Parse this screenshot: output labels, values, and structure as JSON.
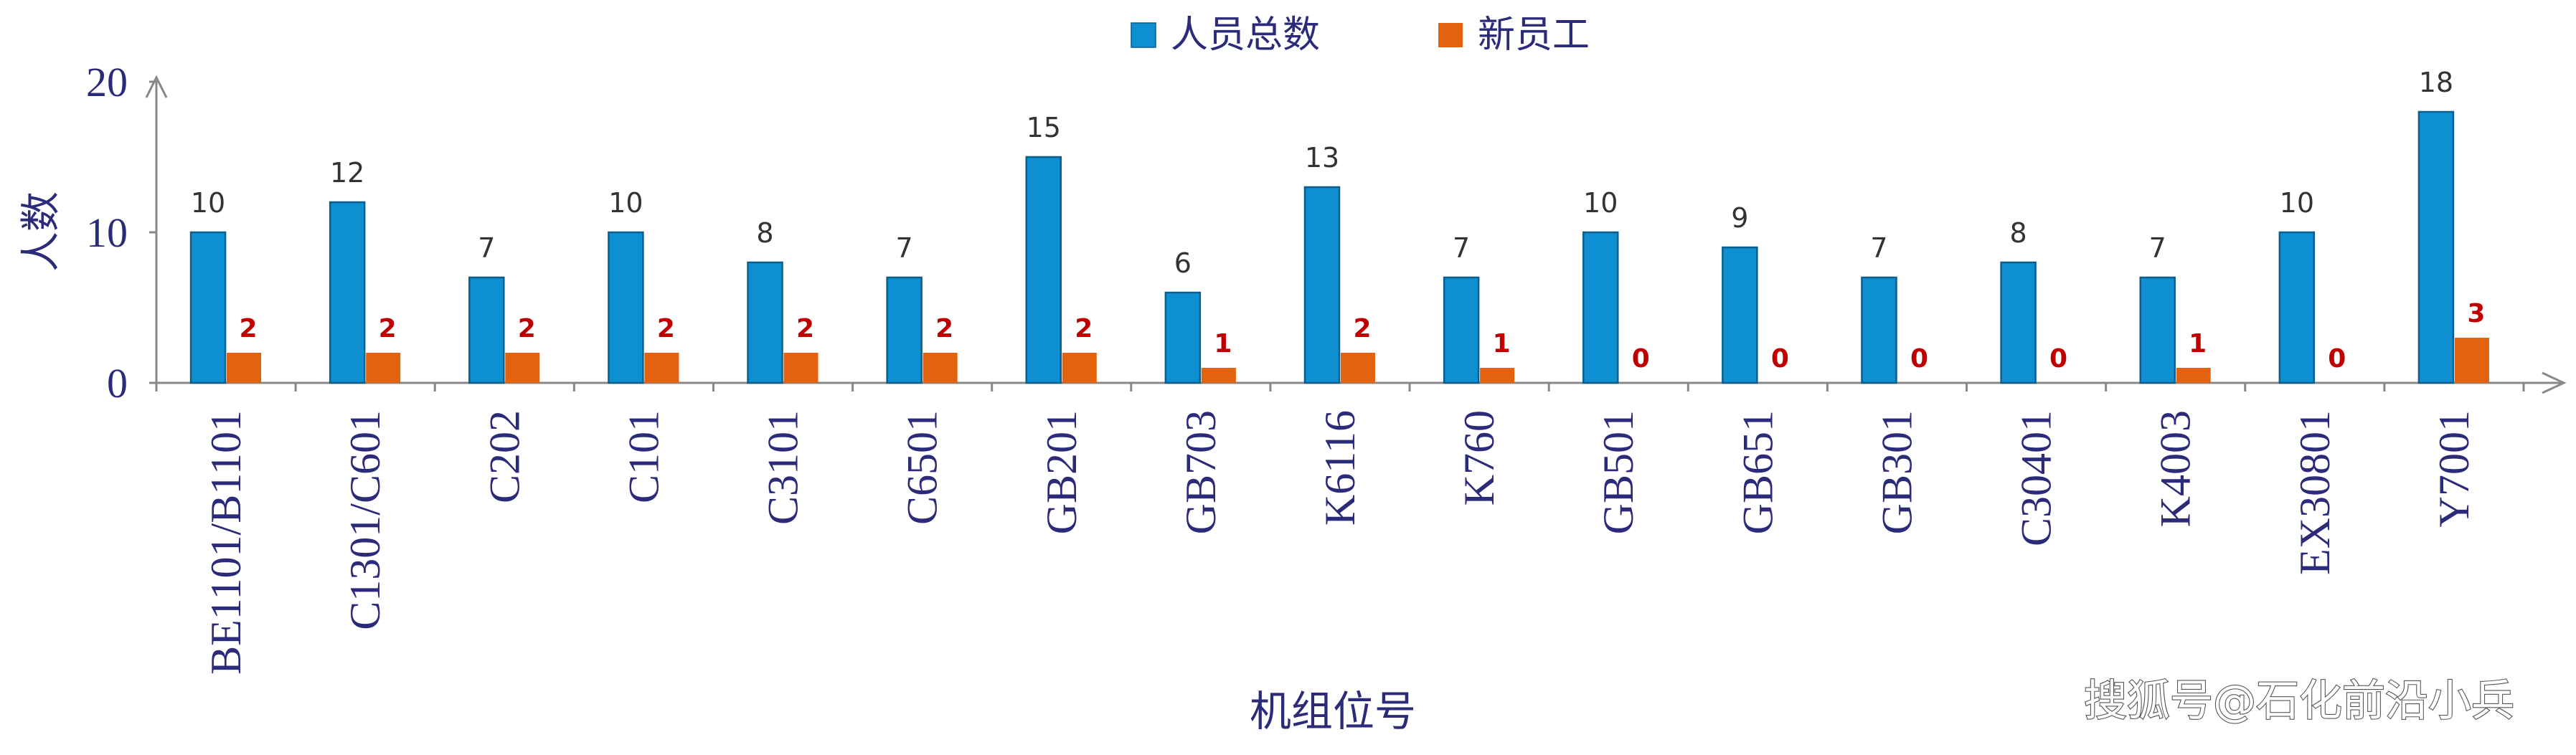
{
  "chart_data": {
    "type": "bar",
    "categories": [
      "BE1101/B1101",
      "C1301/C601",
      "C202",
      "C101",
      "C3101",
      "C6501",
      "GB201",
      "GB703",
      "K6116",
      "K760",
      "GB501",
      "GB651",
      "GB301",
      "C30401",
      "K4003",
      "EX30801",
      "Y7001"
    ],
    "series": [
      {
        "name": "人员总数",
        "color": "#0e8fd1",
        "values": [
          10,
          12,
          7,
          10,
          8,
          7,
          15,
          6,
          13,
          7,
          10,
          9,
          7,
          8,
          7,
          10,
          18
        ]
      },
      {
        "name": "新员工",
        "color": "#e2620e",
        "values": [
          2,
          2,
          2,
          2,
          2,
          2,
          2,
          1,
          2,
          1,
          0,
          0,
          0,
          0,
          1,
          0,
          3
        ]
      }
    ],
    "xlabel": "机组位号",
    "ylabel": "人数",
    "ylim": [
      0,
      20
    ],
    "yticks": [
      "0",
      "10",
      "20"
    ],
    "legend_position": "top-center",
    "grid": false,
    "value_label_colors": {
      "total": "#333333",
      "new": "#c00000"
    }
  },
  "watermark": "搜狐号@石化前沿小兵"
}
